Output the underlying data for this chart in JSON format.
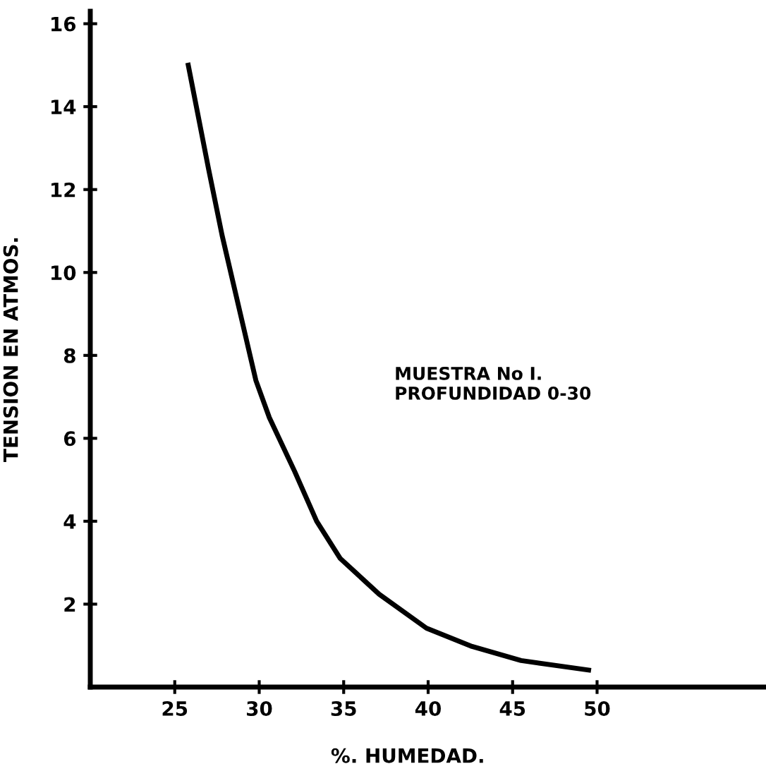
{
  "chart_data": {
    "type": "line",
    "xlabel": "%. HUMEDAD.",
    "ylabel": "TENSION EN ATMOS.",
    "annotations": [
      "MUESTRA No I.\nPROFUNDIDAD 0-30"
    ],
    "series": [
      {
        "color": "#000000",
        "x": [
          25.8,
          27.0,
          27.8,
          29.0,
          29.8,
          30.6,
          32.1,
          33.4,
          34.8,
          37.1,
          39.9,
          42.6,
          45.5,
          49.5
        ],
        "values": [
          15.0,
          12.5,
          10.9,
          8.8,
          7.4,
          6.5,
          5.2,
          4.0,
          3.1,
          2.24,
          1.42,
          0.98,
          0.64,
          0.41
        ]
      }
    ],
    "xlim": [
      20,
      60
    ],
    "ylim": [
      0,
      16.3
    ],
    "xticks": [
      25,
      30,
      35,
      40,
      45,
      50
    ],
    "yticks": [
      2,
      4,
      6,
      8,
      10,
      12,
      14,
      16
    ],
    "grid": false,
    "legend": false,
    "marker": "none",
    "line_style": "solid"
  }
}
